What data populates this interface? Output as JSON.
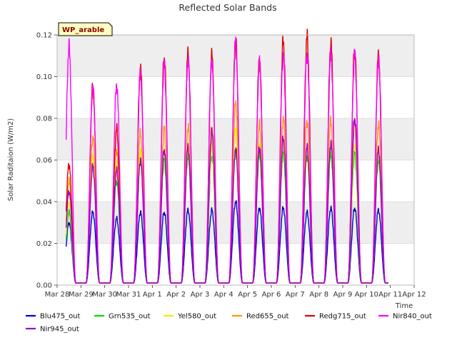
{
  "chart_data": {
    "type": "line",
    "title": "Reflected Solar Bands",
    "xlabel": "Time",
    "ylabel": "Solar Raditaion (W/m2)",
    "annotation": "WP_arable",
    "xlim": [
      0,
      15
    ],
    "ylim": [
      0,
      0.12
    ],
    "x_ticks": [
      {
        "value": 0,
        "label": "Mar 28"
      },
      {
        "value": 1,
        "label": "Mar 29"
      },
      {
        "value": 2,
        "label": "Mar 30"
      },
      {
        "value": 3,
        "label": "Mar 31"
      },
      {
        "value": 4,
        "label": "Apr 1"
      },
      {
        "value": 5,
        "label": "Apr 2"
      },
      {
        "value": 6,
        "label": "Apr 3"
      },
      {
        "value": 7,
        "label": "Apr 4"
      },
      {
        "value": 8,
        "label": "Apr 5"
      },
      {
        "value": 9,
        "label": "Apr 6"
      },
      {
        "value": 10,
        "label": "Apr 7"
      },
      {
        "value": 11,
        "label": "Apr 8"
      },
      {
        "value": 12,
        "label": "Apr 9"
      },
      {
        "value": 13,
        "label": "Apr 10"
      },
      {
        "value": 14,
        "label": "Apr 11"
      },
      {
        "value": 15,
        "label": "Apr 12"
      }
    ],
    "y_ticks": [
      {
        "value": 0.0,
        "label": "0.00"
      },
      {
        "value": 0.02,
        "label": "0.02"
      },
      {
        "value": 0.04,
        "label": "0.04"
      },
      {
        "value": 0.06,
        "label": "0.06"
      },
      {
        "value": 0.08,
        "label": "0.08"
      },
      {
        "value": 0.1,
        "label": "0.10"
      },
      {
        "value": 0.12,
        "label": "0.12"
      }
    ],
    "day_centers": [
      0.5,
      1.5,
      2.5,
      3.5,
      4.5,
      5.5,
      6.5,
      7.5,
      8.5,
      9.5,
      10.5,
      11.5,
      12.5,
      13.5
    ],
    "night_base": 0.001,
    "grid": true,
    "legend_position": "bottom",
    "series": [
      {
        "name": "Blu475_out",
        "color": "#0000cc",
        "peaks": [
          0.03,
          0.035,
          0.032,
          0.035,
          0.035,
          0.036,
          0.036,
          0.04,
          0.037,
          0.037,
          0.035,
          0.037,
          0.037,
          0.036
        ]
      },
      {
        "name": "Grn535_out",
        "color": "#00dd00",
        "peaks": [
          0.035,
          0.058,
          0.05,
          0.06,
          0.06,
          0.062,
          0.062,
          0.065,
          0.063,
          0.063,
          0.062,
          0.063,
          0.063,
          0.06
        ]
      },
      {
        "name": "Yel580_out",
        "color": "#eeee00",
        "peaks": [
          0.04,
          0.062,
          0.058,
          0.064,
          0.065,
          0.066,
          0.066,
          0.075,
          0.068,
          0.068,
          0.066,
          0.068,
          0.068,
          0.065
        ]
      },
      {
        "name": "Red655_out",
        "color": "#ff9900",
        "peaks": [
          0.05,
          0.071,
          0.065,
          0.073,
          0.075,
          0.076,
          0.076,
          0.087,
          0.077,
          0.08,
          0.079,
          0.079,
          0.078,
          0.077
        ]
      },
      {
        "name": "Redg715_out",
        "color": "#dd0000",
        "peaks": [
          0.058,
          0.095,
          0.075,
          0.104,
          0.109,
          0.111,
          0.11,
          0.117,
          0.108,
          0.117,
          0.119,
          0.116,
          0.113,
          0.11
        ]
      },
      {
        "name": "Nir840_out",
        "color": "#ff00ff",
        "peaks": [
          0.114,
          0.095,
          0.096,
          0.101,
          0.106,
          0.108,
          0.108,
          0.117,
          0.106,
          0.11,
          0.111,
          0.111,
          0.111,
          0.108
        ]
      },
      {
        "name": "Nir945_out",
        "color": "#9900cc",
        "peaks": [
          0.045,
          0.057,
          0.055,
          0.06,
          0.065,
          0.066,
          0.073,
          0.065,
          0.066,
          0.07,
          0.066,
          0.068,
          0.08,
          0.065
        ]
      }
    ]
  }
}
